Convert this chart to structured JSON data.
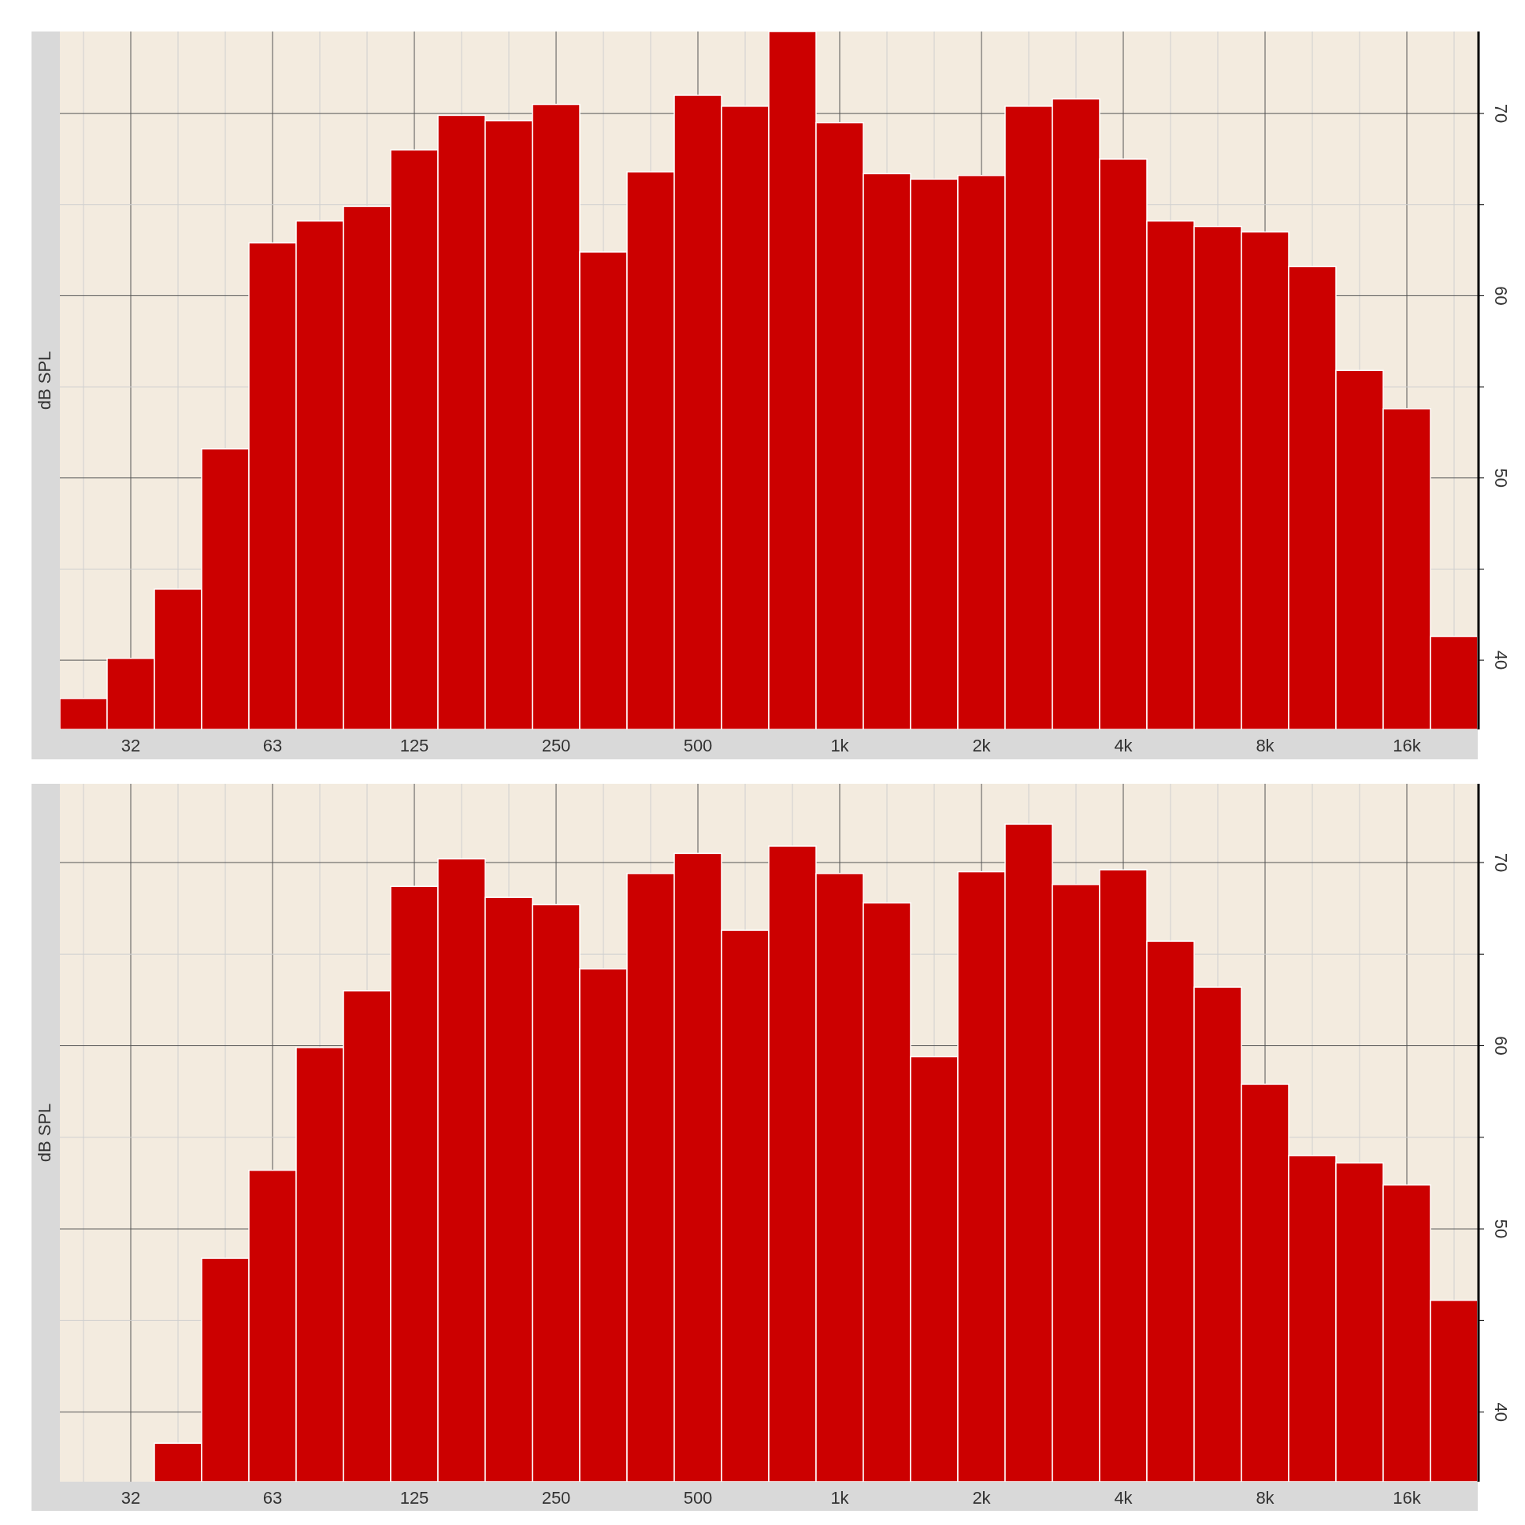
{
  "chart_data": [
    {
      "type": "bar",
      "ylabel": "dB SPL",
      "categories": [
        null,
        "32",
        null,
        null,
        "63",
        null,
        null,
        "125",
        null,
        null,
        "250",
        null,
        null,
        "500",
        null,
        null,
        "1k",
        null,
        null,
        "2k",
        null,
        null,
        "4k",
        null,
        null,
        "8k",
        null,
        null,
        "16k",
        null
      ],
      "values": [
        37.9,
        40.1,
        43.9,
        51.6,
        62.9,
        64.1,
        64.9,
        68.0,
        69.9,
        69.6,
        70.5,
        62.4,
        66.8,
        71.0,
        70.4,
        74.5,
        69.5,
        66.7,
        66.4,
        66.6,
        70.4,
        70.8,
        67.5,
        64.1,
        63.8,
        63.5,
        61.6,
        55.9,
        53.8,
        41.3
      ],
      "color": "#cc0000",
      "ylim": [
        36.2,
        74.5
      ],
      "yticks": [
        40,
        {
          "value": 45,
          "label": null
        },
        50,
        {
          "value": 55,
          "label": null
        },
        60,
        {
          "value": 65,
          "label": null
        },
        70
      ],
      "grid": true
    },
    {
      "type": "bar",
      "ylabel": "dB SPL",
      "categories": [
        null,
        "32",
        null,
        null,
        "63",
        null,
        null,
        "125",
        null,
        null,
        "250",
        null,
        null,
        "500",
        null,
        null,
        "1k",
        null,
        null,
        "2k",
        null,
        null,
        "4k",
        null,
        null,
        "8k",
        null,
        null,
        "16k",
        null
      ],
      "values": [
        null,
        null,
        38.3,
        48.4,
        53.2,
        59.9,
        63.0,
        68.7,
        70.2,
        68.1,
        67.7,
        64.2,
        69.4,
        70.5,
        66.3,
        70.9,
        69.4,
        67.8,
        59.4,
        69.5,
        72.1,
        68.8,
        69.6,
        65.7,
        63.2,
        57.9,
        54.0,
        53.6,
        52.4,
        46.1
      ],
      "color": "#cc0000",
      "ylim": [
        36.2,
        74.3
      ],
      "yticks": [
        40,
        {
          "value": 45,
          "label": null
        },
        50,
        {
          "value": 55,
          "label": null
        },
        60,
        {
          "value": 65,
          "label": null
        },
        70
      ],
      "grid": true
    }
  ]
}
